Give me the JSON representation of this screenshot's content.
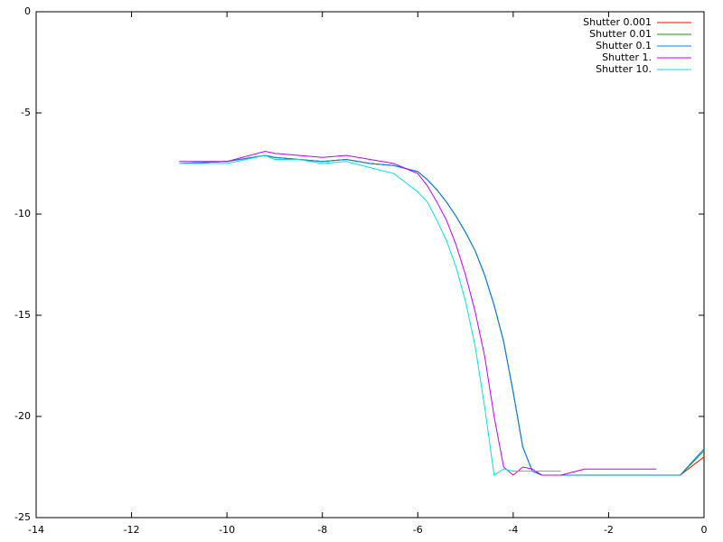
{
  "chart_data": {
    "type": "line",
    "x": [
      -11,
      -10,
      -9.2,
      -9,
      -8.5,
      -8,
      -7.5,
      -7,
      -6.5,
      -6,
      -5.8,
      -5.6,
      -5.4,
      -5.2,
      -5,
      -4.8,
      -4.6,
      -4.4,
      -4.2,
      -4,
      -3.8,
      -3.6,
      -3.4,
      -3,
      -2.5,
      -2,
      -1.5,
      -1,
      -0.5,
      0
    ],
    "series": [
      {
        "name": "Shutter 0.001",
        "color": "#ff0000",
        "values": [
          -7.5,
          -7.4,
          -7.1,
          -7.2,
          -7.3,
          -7.4,
          -7.3,
          -7.5,
          -7.6,
          -7.9,
          -8.3,
          -8.8,
          -9.4,
          -10.1,
          -10.9,
          -11.8,
          -13.0,
          -14.5,
          -16.3,
          -18.8,
          -21.5,
          -22.7,
          -22.9,
          -22.9,
          -22.9,
          -22.9,
          -22.9,
          -22.9,
          -22.9,
          -22.0
        ]
      },
      {
        "name": "Shutter 0.01",
        "color": "#00a000",
        "values": [
          -7.5,
          -7.4,
          -7.1,
          -7.2,
          -7.3,
          -7.4,
          -7.3,
          -7.5,
          -7.6,
          -7.9,
          -8.3,
          -8.8,
          -9.4,
          -10.1,
          -10.9,
          -11.8,
          -13.0,
          -14.5,
          -16.3,
          -18.8,
          -21.5,
          -22.7,
          -22.9,
          -22.9,
          -22.9,
          -22.9,
          -22.9,
          -22.9,
          -22.9,
          -21.7
        ]
      },
      {
        "name": "Shutter 0.1",
        "color": "#0080ff",
        "values": [
          -7.5,
          -7.4,
          -7.1,
          -7.2,
          -7.3,
          -7.4,
          -7.3,
          -7.5,
          -7.6,
          -7.9,
          -8.3,
          -8.8,
          -9.4,
          -10.1,
          -10.9,
          -11.8,
          -13.0,
          -14.5,
          -16.3,
          -18.8,
          -21.5,
          -22.7,
          -22.9,
          -22.9,
          -22.9,
          -22.9,
          -22.9,
          -22.9,
          -22.9,
          -21.6
        ]
      },
      {
        "name": "Shutter 1.",
        "color": "#c000ff",
        "values": [
          -7.4,
          -7.4,
          -6.9,
          -7.0,
          -7.1,
          -7.2,
          -7.1,
          -7.3,
          -7.5,
          -8.0,
          -8.6,
          -9.4,
          -10.3,
          -11.5,
          -13.0,
          -14.8,
          -17.0,
          -20.0,
          -22.5,
          -22.9,
          -22.5,
          -22.6,
          -22.9,
          -22.9,
          -22.6,
          -22.6,
          -22.6,
          -22.6,
          null,
          null
        ]
      },
      {
        "name": "Shutter 10.",
        "color": "#00e0e0",
        "values": [
          -7.5,
          -7.5,
          -7.1,
          -7.3,
          -7.3,
          -7.5,
          -7.4,
          -7.7,
          -8.0,
          -8.9,
          -9.4,
          -10.3,
          -11.3,
          -12.6,
          -14.3,
          -16.5,
          -19.5,
          -22.9,
          -22.6,
          -22.7,
          -22.7,
          -22.7,
          -22.7,
          -22.7,
          null,
          null,
          null,
          null,
          null,
          null
        ]
      }
    ],
    "xlim": [
      -14,
      0
    ],
    "xticks": [
      -14,
      -12,
      -10,
      -8,
      -6,
      -4,
      -2,
      0
    ],
    "ylim": [
      -25,
      0
    ],
    "yticks": [
      -25,
      -20,
      -15,
      -10,
      -5,
      0
    ],
    "legend": "top-right"
  }
}
